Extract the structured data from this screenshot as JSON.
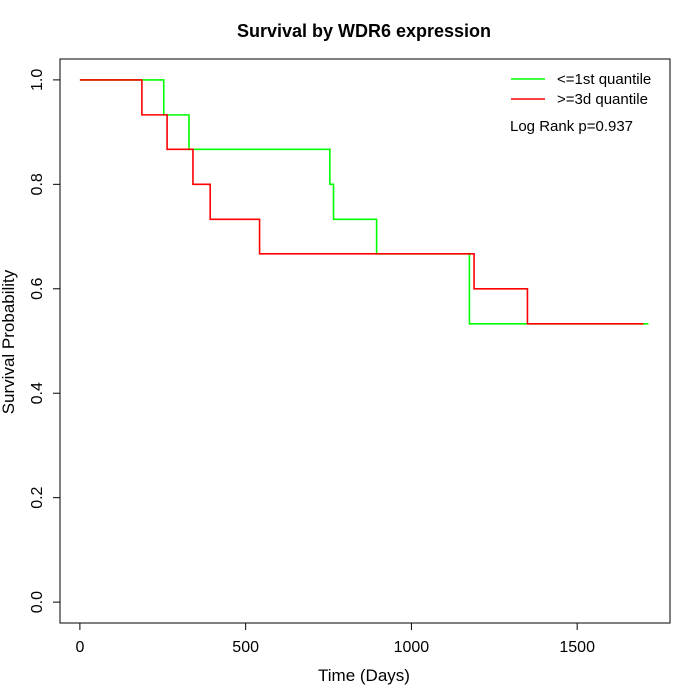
{
  "chart_data": {
    "type": "line",
    "title": "Survival by WDR6 expression",
    "xlabel": "Time (Days)",
    "ylabel": "Survival Probability",
    "xlim": [
      -60,
      1780
    ],
    "ylim": [
      -0.04,
      1.04
    ],
    "xticks": [
      0,
      500,
      1000,
      1500
    ],
    "yticks": [
      0.0,
      0.2,
      0.4,
      0.6,
      0.8,
      1.0
    ],
    "xtick_labels": [
      "0",
      "500",
      "1000",
      "1500"
    ],
    "ytick_labels": [
      "0.0",
      "0.2",
      "0.4",
      "0.6",
      "0.8",
      "1.0"
    ],
    "grid": false,
    "legend_position": "top-right",
    "annotation": "Log Rank p=0.937",
    "series": [
      {
        "name": "<=1st quantile",
        "color": "#00ff00",
        "x": [
          0,
          253,
          329,
          754,
          765,
          895,
          1175,
          1715
        ],
        "y": [
          1.0,
          0.933,
          0.867,
          0.8,
          0.733,
          0.667,
          0.533,
          0.533
        ]
      },
      {
        "name": ">=3d quantile",
        "color": "#ff0000",
        "x": [
          0,
          187,
          263,
          341,
          393,
          542,
          1189,
          1350,
          1700
        ],
        "y": [
          1.0,
          0.933,
          0.867,
          0.8,
          0.733,
          0.667,
          0.6,
          0.533,
          0.533
        ]
      }
    ]
  }
}
